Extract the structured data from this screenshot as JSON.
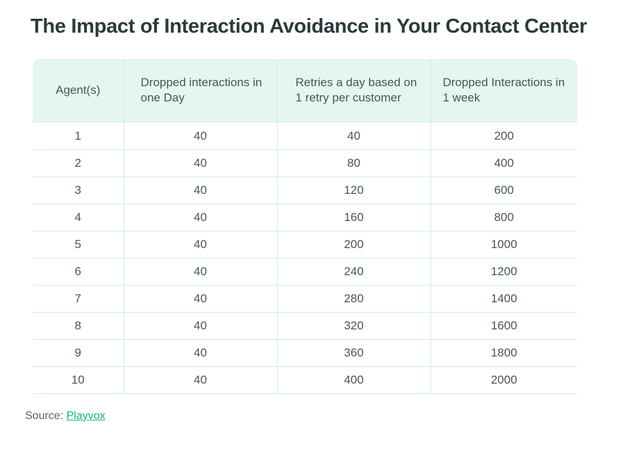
{
  "title": "The Impact of Interaction Avoidance in Your Contact Center",
  "table": {
    "headers": [
      "Agent(s)",
      "Dropped interactions in one Day",
      "Retries a day based on 1 retry per customer",
      "Dropped Interactions in 1 week"
    ],
    "rows": [
      [
        "1",
        "40",
        "40",
        "200"
      ],
      [
        "2",
        "40",
        "80",
        "400"
      ],
      [
        "3",
        "40",
        "120",
        "600"
      ],
      [
        "4",
        "40",
        "160",
        "800"
      ],
      [
        "5",
        "40",
        "200",
        "1000"
      ],
      [
        "6",
        "40",
        "240",
        "1200"
      ],
      [
        "7",
        "40",
        "280",
        "1400"
      ],
      [
        "8",
        "40",
        "320",
        "1600"
      ],
      [
        "9",
        "40",
        "360",
        "1800"
      ],
      [
        "10",
        "40",
        "400",
        "2000"
      ]
    ]
  },
  "source": {
    "label": "Source:",
    "link_text": "Playvox"
  },
  "colors": {
    "header_bg": "#e3f6f0",
    "border": "#cfeee4",
    "link": "#19b38a",
    "title": "#2b3a3a"
  }
}
